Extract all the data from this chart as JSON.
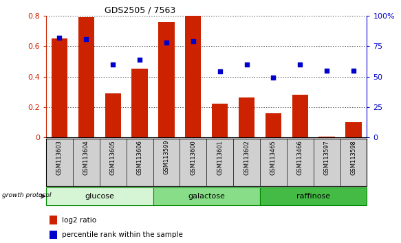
{
  "title": "GDS2505 / 7563",
  "samples": [
    "GSM113603",
    "GSM113604",
    "GSM113605",
    "GSM113606",
    "GSM113599",
    "GSM113600",
    "GSM113601",
    "GSM113602",
    "GSM113465",
    "GSM113466",
    "GSM113597",
    "GSM113598"
  ],
  "log2_ratio": [
    0.65,
    0.79,
    0.29,
    0.45,
    0.76,
    0.8,
    0.22,
    0.26,
    0.16,
    0.28,
    0.005,
    0.1
  ],
  "percentile_rank": [
    82,
    81,
    60,
    64,
    78,
    79,
    54,
    60,
    49,
    60,
    55,
    55
  ],
  "groups": [
    {
      "label": "glucose",
      "start": 0,
      "end": 4,
      "color": "#d5f5d5"
    },
    {
      "label": "galactose",
      "start": 4,
      "end": 8,
      "color": "#88dd88"
    },
    {
      "label": "raffinose",
      "start": 8,
      "end": 12,
      "color": "#44bb44"
    }
  ],
  "bar_color": "#cc2200",
  "dot_color": "#0000cc",
  "ylim_left": [
    0,
    0.8
  ],
  "ylim_right": [
    0,
    100
  ],
  "yticks_left": [
    0,
    0.2,
    0.4,
    0.6,
    0.8
  ],
  "ytick_labels_left": [
    "0",
    "0.2",
    "0.4",
    "0.6",
    "0.8"
  ],
  "yticks_right": [
    0,
    25,
    50,
    75,
    100
  ],
  "ytick_labels_right": [
    "0",
    "25",
    "50",
    "75",
    "100%"
  ],
  "grid_color": "#000000",
  "background_color": "#ffffff",
  "legend_log2": "log2 ratio",
  "legend_pct": "percentile rank within the sample",
  "growth_protocol_label": "growth protocol",
  "title_color": "#000000",
  "left_axis_color": "#cc2200",
  "right_axis_color": "#0000cc",
  "label_bg_color": "#d0d0d0",
  "bar_width": 0.6
}
